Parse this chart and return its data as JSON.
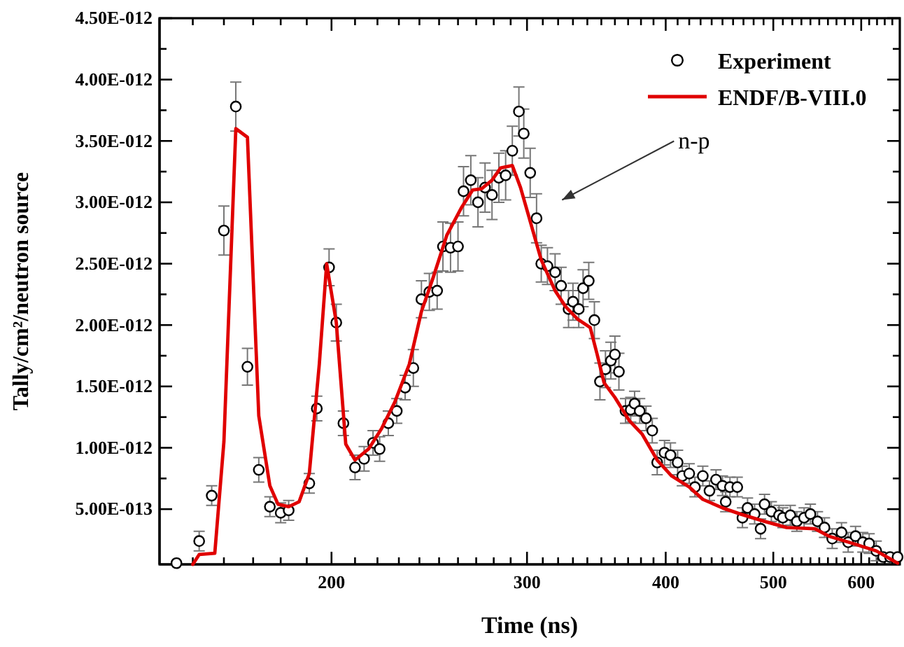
{
  "chart_data": {
    "type": "scatter",
    "xlabel": "Time (ns)",
    "ylabel": "Tally/cm²/neutron source",
    "log": "x",
    "grid": false,
    "legend": "top right",
    "xlim": [
      140,
      650
    ],
    "ylim": [
      5e-14,
      4.5e-12
    ],
    "xticks": [
      {
        "value": 150,
        "label": null
      },
      {
        "value": 160,
        "label": null
      },
      {
        "value": 170,
        "label": null
      },
      {
        "value": 180,
        "label": null
      },
      {
        "value": 190,
        "label": null
      },
      200,
      {
        "value": 210,
        "label": null
      },
      {
        "value": 220,
        "label": null
      },
      {
        "value": 230,
        "label": null
      },
      {
        "value": 240,
        "label": null
      },
      {
        "value": 250,
        "label": null
      },
      {
        "value": 260,
        "label": null
      },
      {
        "value": 270,
        "label": null
      },
      {
        "value": 280,
        "label": null
      },
      {
        "value": 290,
        "label": null
      },
      300,
      {
        "value": 310,
        "label": null
      },
      {
        "value": 320,
        "label": null
      },
      {
        "value": 330,
        "label": null
      },
      {
        "value": 340,
        "label": null
      },
      {
        "value": 350,
        "label": null
      },
      {
        "value": 360,
        "label": null
      },
      {
        "value": 370,
        "label": null
      },
      {
        "value": 380,
        "label": null
      },
      {
        "value": 390,
        "label": null
      },
      400,
      {
        "value": 410,
        "label": null
      },
      {
        "value": 420,
        "label": null
      },
      {
        "value": 430,
        "label": null
      },
      {
        "value": 440,
        "label": null
      },
      {
        "value": 450,
        "label": null
      },
      {
        "value": 460,
        "label": null
      },
      {
        "value": 470,
        "label": null
      },
      {
        "value": 480,
        "label": null
      },
      {
        "value": 490,
        "label": null
      },
      500,
      {
        "value": 510,
        "label": null
      },
      {
        "value": 520,
        "label": null
      },
      {
        "value": 530,
        "label": null
      },
      {
        "value": 540,
        "label": null
      },
      {
        "value": 550,
        "label": null
      },
      {
        "value": 560,
        "label": null
      },
      {
        "value": 570,
        "label": null
      },
      {
        "value": 580,
        "label": null
      },
      {
        "value": 590,
        "label": null
      },
      600,
      {
        "value": 610,
        "label": null
      },
      {
        "value": 620,
        "label": null
      },
      {
        "value": 630,
        "label": null
      },
      {
        "value": 640,
        "label": null
      }
    ],
    "yticks": [
      {
        "value": 5e-13,
        "label": "5.00E-013"
      },
      {
        "value": 7.5e-13,
        "label": null
      },
      {
        "value": 1e-12,
        "label": "1.00E-012"
      },
      {
        "value": 1.25e-12,
        "label": null
      },
      {
        "value": 1.5e-12,
        "label": "1.50E-012"
      },
      {
        "value": 1.75e-12,
        "label": null
      },
      {
        "value": 2e-12,
        "label": "2.00E-012"
      },
      {
        "value": 2.25e-12,
        "label": null
      },
      {
        "value": 2.5e-12,
        "label": "2.50E-012"
      },
      {
        "value": 2.75e-12,
        "label": null
      },
      {
        "value": 3e-12,
        "label": "3.00E-012"
      },
      {
        "value": 3.25e-12,
        "label": null
      },
      {
        "value": 3.5e-12,
        "label": "3.50E-012"
      },
      {
        "value": 3.75e-12,
        "label": null
      },
      {
        "value": 4e-12,
        "label": "4.00E-012"
      },
      {
        "value": 4.25e-12,
        "label": null
      },
      {
        "value": 4.5e-12,
        "label": "4.50E-012"
      }
    ],
    "annotations": [
      "n-p"
    ],
    "series": [
      {
        "name": "Experiment",
        "marker": "circle",
        "color": "#000000",
        "x": [
          145,
          152,
          156,
          160,
          164,
          168,
          172,
          176,
          180,
          183,
          191,
          194,
          199,
          202,
          205,
          210,
          214,
          218,
          221,
          225,
          229,
          233,
          237,
          241,
          245,
          249,
          252,
          256,
          260,
          263,
          267,
          271,
          275,
          279,
          283,
          287,
          291,
          295,
          298,
          302,
          306,
          309,
          313,
          318,
          322,
          327,
          330,
          334,
          337,
          341,
          345,
          349,
          353,
          357,
          360,
          363,
          368,
          372,
          375,
          379,
          384,
          389,
          393,
          399,
          404,
          410,
          414,
          420,
          425,
          432,
          438,
          444,
          450,
          453,
          457,
          464,
          469,
          474,
          481,
          487,
          491,
          498,
          506,
          510,
          518,
          525,
          533,
          540,
          548,
          556,
          565,
          576,
          584,
          593,
          602,
          610,
          619,
          628,
          637,
          647
        ],
        "values": [
          6e-14,
          2.4e-13,
          6.1e-13,
          2.77e-12,
          3.78e-12,
          1.66e-12,
          8.2e-13,
          5.2e-13,
          4.7e-13,
          4.9e-13,
          7.1e-13,
          1.32e-12,
          2.47e-12,
          2.02e-12,
          1.2e-12,
          8.4e-13,
          9.1e-13,
          1.04e-12,
          9.9e-13,
          1.2e-12,
          1.3e-12,
          1.49e-12,
          1.65e-12,
          2.21e-12,
          2.27e-12,
          2.28e-12,
          2.64e-12,
          2.63e-12,
          2.64e-12,
          3.09e-12,
          3.18e-12,
          3e-12,
          3.12e-12,
          3.06e-12,
          3.2e-12,
          3.22e-12,
          3.42e-12,
          3.74e-12,
          3.56e-12,
          3.24e-12,
          2.87e-12,
          2.5e-12,
          2.48e-12,
          2.43e-12,
          2.32e-12,
          2.13e-12,
          2.19e-12,
          2.13e-12,
          2.3e-12,
          2.36e-12,
          2.04e-12,
          1.54e-12,
          1.64e-12,
          1.71e-12,
          1.76e-12,
          1.62e-12,
          1.3e-12,
          1.31e-12,
          1.36e-12,
          1.3e-12,
          1.24e-12,
          1.14e-12,
          8.8e-13,
          9.6e-13,
          9.4e-13,
          8.8e-13,
          7.7e-13,
          7.9e-13,
          6.8e-13,
          7.7e-13,
          6.5e-13,
          7.4e-13,
          6.9e-13,
          5.6e-13,
          6.8e-13,
          6.8e-13,
          4.3e-13,
          5.1e-13,
          4.6e-13,
          3.4e-13,
          5.4e-13,
          4.8e-13,
          4.5e-13,
          4.3e-13,
          4.5e-13,
          4e-13,
          4.3e-13,
          4.6e-13,
          4e-13,
          3.5e-13,
          2.6e-13,
          3.1e-13,
          2.3e-13,
          2.8e-13,
          2.3e-13,
          2.2e-13,
          1.6e-13,
          1.1e-13,
          1.1e-13,
          1.1e-13
        ],
        "errors": [
          null,
          8e-14,
          8e-14,
          2e-13,
          2e-13,
          1.5e-13,
          1e-13,
          8e-14,
          8e-14,
          8e-14,
          8e-14,
          1e-13,
          1.5e-13,
          1.5e-13,
          1e-13,
          1e-13,
          1e-13,
          1e-13,
          1e-13,
          1e-13,
          1e-13,
          1e-13,
          1.5e-13,
          1.5e-13,
          1.5e-13,
          1.5e-13,
          2e-13,
          2e-13,
          2e-13,
          2e-13,
          2e-13,
          2e-13,
          2e-13,
          2e-13,
          2e-13,
          2e-13,
          2e-13,
          2e-13,
          2e-13,
          2e-13,
          2e-13,
          1.5e-13,
          1.5e-13,
          1.5e-13,
          1.5e-13,
          1.5e-13,
          1.5e-13,
          1.5e-13,
          1.5e-13,
          1.5e-13,
          1.5e-13,
          1.5e-13,
          1.5e-13,
          1.5e-13,
          1.5e-13,
          1.5e-13,
          1e-13,
          1e-13,
          1e-13,
          1e-13,
          1e-13,
          1e-13,
          1e-13,
          1e-13,
          1e-13,
          1e-13,
          8e-14,
          8e-14,
          8e-14,
          8e-14,
          8e-14,
          8e-14,
          8e-14,
          8e-14,
          8e-14,
          8e-14,
          8e-14,
          8e-14,
          8e-14,
          8e-14,
          8e-14,
          8e-14,
          8e-14,
          8e-14,
          8e-14,
          8e-14,
          8e-14,
          8e-14,
          8e-14,
          8e-14,
          8e-14,
          8e-14,
          8e-14,
          8e-14,
          8e-14,
          8e-14,
          8e-14,
          null,
          null,
          null
        ]
      },
      {
        "name": "ENDF/B-VIII.0",
        "type": "line",
        "line_style": "solid",
        "color": "#e00000",
        "x": [
          150,
          152,
          157,
          160,
          164,
          168,
          172,
          176,
          179,
          183,
          187,
          191,
          195,
          198,
          202,
          206,
          210,
          216,
          222,
          228,
          235,
          241,
          247,
          254,
          262,
          268,
          273,
          279,
          284,
          291,
          296,
          301,
          309,
          318,
          325,
          333,
          342,
          347,
          352,
          360,
          371,
          381,
          393,
          405,
          420,
          432,
          450,
          467,
          491,
          514,
          545,
          561,
          590,
          619,
          647
        ],
        "values": [
          5e-14,
          1.3e-13,
          1.4e-13,
          1.05e-12,
          3.6e-12,
          3.53e-12,
          1.26e-12,
          6.9e-13,
          5.4e-13,
          5.2e-13,
          5.6e-13,
          7.9e-13,
          1.68e-12,
          2.5e-12,
          2.02e-12,
          1.03e-12,
          9e-13,
          9.9e-13,
          1.16e-12,
          1.37e-12,
          1.68e-12,
          2.11e-12,
          2.39e-12,
          2.73e-12,
          2.96e-12,
          3.1e-12,
          3.11e-12,
          3.18e-12,
          3.28e-12,
          3.3e-12,
          3.12e-12,
          2.89e-12,
          2.53e-12,
          2.28e-12,
          2.15e-12,
          2.05e-12,
          1.98e-12,
          1.76e-12,
          1.53e-12,
          1.41e-12,
          1.22e-12,
          1.11e-12,
          9e-13,
          7.7e-13,
          6.8e-13,
          5.8e-13,
          5.1e-13,
          4.6e-13,
          4e-13,
          3.5e-13,
          3.4e-13,
          2.8e-13,
          2.2e-13,
          1.6e-13,
          6e-14
        ]
      }
    ]
  }
}
